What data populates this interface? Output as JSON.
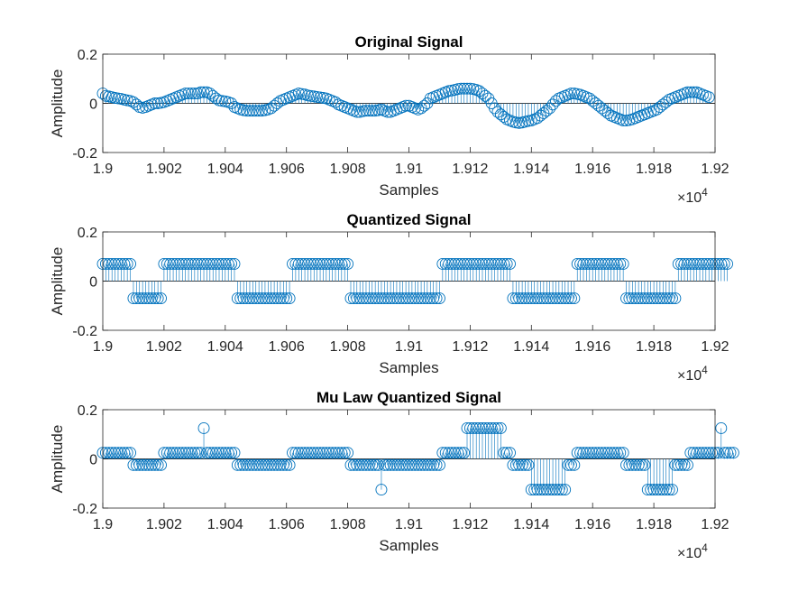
{
  "figure": {
    "background": "#ffffff",
    "stem_color": "#0072BD",
    "axis_color": "#262626"
  },
  "chart_data": [
    {
      "type": "stem",
      "title": "Original Signal",
      "xlabel": "Samples",
      "ylabel": "Amplitude",
      "xlim": [
        19000,
        19200
      ],
      "ylim": [
        -0.2,
        0.2
      ],
      "xticks": [
        19000,
        19020,
        19040,
        19060,
        19080,
        19100,
        19120,
        19140,
        19160,
        19180,
        19200
      ],
      "xtick_labels": [
        "1.9",
        "1.902",
        "1.904",
        "1.906",
        "1.908",
        "1.91",
        "1.912",
        "1.914",
        "1.916",
        "1.918",
        "1.92"
      ],
      "yticks": [
        -0.2,
        0,
        0.2
      ],
      "ytick_labels": [
        "-0.2",
        "0",
        "0.2"
      ],
      "x_exponent": {
        "base": "×10",
        "power": "4"
      },
      "grid": false,
      "x_start": 19000,
      "x_step": 1,
      "values": [
        0.04,
        0.03,
        0.028,
        0.025,
        0.022,
        0.02,
        0.018,
        0.015,
        0.012,
        0.01,
        0.005,
        -0.005,
        -0.015,
        -0.018,
        -0.015,
        -0.01,
        -0.005,
        0.0,
        0.0,
        0.002,
        0.005,
        0.01,
        0.015,
        0.02,
        0.025,
        0.03,
        0.035,
        0.04,
        0.04,
        0.04,
        0.04,
        0.04,
        0.045,
        0.045,
        0.045,
        0.04,
        0.03,
        0.02,
        0.012,
        0.01,
        0.008,
        0.005,
        0.0,
        -0.015,
        -0.02,
        -0.025,
        -0.028,
        -0.03,
        -0.03,
        -0.03,
        -0.03,
        -0.03,
        -0.03,
        -0.028,
        -0.025,
        -0.02,
        -0.01,
        0.0,
        0.01,
        0.015,
        0.02,
        0.025,
        0.03,
        0.035,
        0.04,
        0.038,
        0.036,
        0.032,
        0.03,
        0.028,
        0.026,
        0.024,
        0.022,
        0.02,
        0.015,
        0.01,
        0.005,
        -0.005,
        -0.01,
        -0.015,
        -0.02,
        -0.025,
        -0.03,
        -0.035,
        -0.035,
        -0.032,
        -0.03,
        -0.03,
        -0.03,
        -0.03,
        -0.028,
        -0.025,
        -0.03,
        -0.035,
        -0.035,
        -0.03,
        -0.025,
        -0.02,
        -0.015,
        -0.01,
        -0.01,
        -0.015,
        -0.02,
        -0.025,
        -0.02,
        -0.01,
        0.0,
        0.02,
        0.025,
        0.03,
        0.035,
        0.04,
        0.045,
        0.05,
        0.052,
        0.055,
        0.058,
        0.06,
        0.06,
        0.06,
        0.06,
        0.058,
        0.055,
        0.05,
        0.04,
        0.03,
        0.02,
        0.0,
        -0.02,
        -0.035,
        -0.045,
        -0.055,
        -0.065,
        -0.07,
        -0.075,
        -0.078,
        -0.08,
        -0.078,
        -0.075,
        -0.072,
        -0.07,
        -0.065,
        -0.06,
        -0.05,
        -0.04,
        -0.03,
        -0.02,
        -0.005,
        0.01,
        0.02,
        0.025,
        0.03,
        0.035,
        0.04,
        0.04,
        0.038,
        0.035,
        0.03,
        0.025,
        0.02,
        0.01,
        0.0,
        -0.01,
        -0.02,
        -0.03,
        -0.04,
        -0.05,
        -0.055,
        -0.06,
        -0.065,
        -0.07,
        -0.07,
        -0.068,
        -0.065,
        -0.06,
        -0.055,
        -0.05,
        -0.045,
        -0.04,
        -0.035,
        -0.03,
        -0.025,
        -0.015,
        -0.005,
        0.005,
        0.015,
        0.02,
        0.025,
        0.03,
        0.035,
        0.04,
        0.045,
        0.045,
        0.045,
        0.045,
        0.04,
        0.035,
        0.03,
        0.025
      ]
    },
    {
      "type": "stem",
      "title": "Quantized Signal",
      "xlabel": "Samples",
      "ylabel": "Amplitude",
      "xlim": [
        19000,
        19200
      ],
      "ylim": [
        -0.2,
        0.2
      ],
      "xticks": [
        19000,
        19020,
        19040,
        19060,
        19080,
        19100,
        19120,
        19140,
        19160,
        19180,
        19200
      ],
      "xtick_labels": [
        "1.9",
        "1.902",
        "1.904",
        "1.906",
        "1.908",
        "1.91",
        "1.912",
        "1.914",
        "1.916",
        "1.918",
        "1.92"
      ],
      "yticks": [
        -0.2,
        0,
        0.2
      ],
      "ytick_labels": [
        "-0.2",
        "0",
        "0.2"
      ],
      "x_exponent": {
        "base": "×10",
        "power": "4"
      },
      "grid": false,
      "x_start": 19000,
      "x_step": 1,
      "values": [
        0.07,
        0.07,
        0.07,
        0.07,
        0.07,
        0.07,
        0.07,
        0.07,
        0.07,
        0.07,
        -0.07,
        -0.07,
        -0.07,
        -0.07,
        -0.07,
        -0.07,
        -0.07,
        -0.07,
        -0.07,
        -0.07,
        0.07,
        0.07,
        0.07,
        0.07,
        0.07,
        0.07,
        0.07,
        0.07,
        0.07,
        0.07,
        0.07,
        0.07,
        0.07,
        0.07,
        0.07,
        0.07,
        0.07,
        0.07,
        0.07,
        0.07,
        0.07,
        0.07,
        0.07,
        0.07,
        -0.07,
        -0.07,
        -0.07,
        -0.07,
        -0.07,
        -0.07,
        -0.07,
        -0.07,
        -0.07,
        -0.07,
        -0.07,
        -0.07,
        -0.07,
        -0.07,
        -0.07,
        -0.07,
        -0.07,
        -0.07,
        0.07,
        0.07,
        0.07,
        0.07,
        0.07,
        0.07,
        0.07,
        0.07,
        0.07,
        0.07,
        0.07,
        0.07,
        0.07,
        0.07,
        0.07,
        0.07,
        0.07,
        0.07,
        0.07,
        -0.07,
        -0.07,
        -0.07,
        -0.07,
        -0.07,
        -0.07,
        -0.07,
        -0.07,
        -0.07,
        -0.07,
        -0.07,
        -0.07,
        -0.07,
        -0.07,
        -0.07,
        -0.07,
        -0.07,
        -0.07,
        -0.07,
        -0.07,
        -0.07,
        -0.07,
        -0.07,
        -0.07,
        -0.07,
        -0.07,
        -0.07,
        -0.07,
        -0.07,
        -0.07,
        0.07,
        0.07,
        0.07,
        0.07,
        0.07,
        0.07,
        0.07,
        0.07,
        0.07,
        0.07,
        0.07,
        0.07,
        0.07,
        0.07,
        0.07,
        0.07,
        0.07,
        0.07,
        0.07,
        0.07,
        0.07,
        0.07,
        0.07,
        -0.07,
        -0.07,
        -0.07,
        -0.07,
        -0.07,
        -0.07,
        -0.07,
        -0.07,
        -0.07,
        -0.07,
        -0.07,
        -0.07,
        -0.07,
        -0.07,
        -0.07,
        -0.07,
        -0.07,
        -0.07,
        -0.07,
        -0.07,
        -0.07,
        0.07,
        0.07,
        0.07,
        0.07,
        0.07,
        0.07,
        0.07,
        0.07,
        0.07,
        0.07,
        0.07,
        0.07,
        0.07,
        0.07,
        0.07,
        0.07,
        -0.07,
        -0.07,
        -0.07,
        -0.07,
        -0.07,
        -0.07,
        -0.07,
        -0.07,
        -0.07,
        -0.07,
        -0.07,
        -0.07,
        -0.07,
        -0.07,
        -0.07,
        -0.07,
        -0.07,
        0.07,
        0.07,
        0.07,
        0.07,
        0.07,
        0.07,
        0.07,
        0.07,
        0.07,
        0.07,
        0.07,
        0.07,
        0.07,
        0.07,
        0.07,
        0.07,
        0.07
      ]
    },
    {
      "type": "stem",
      "title": "Mu Law Quantized Signal",
      "xlabel": "Samples",
      "ylabel": "Amplitude",
      "xlim": [
        19000,
        19200
      ],
      "ylim": [
        -0.2,
        0.2
      ],
      "xticks": [
        19000,
        19020,
        19040,
        19060,
        19080,
        19100,
        19120,
        19140,
        19160,
        19180,
        19200
      ],
      "xtick_labels": [
        "1.9",
        "1.902",
        "1.904",
        "1.906",
        "1.908",
        "1.91",
        "1.912",
        "1.914",
        "1.916",
        "1.918",
        "1.92"
      ],
      "yticks": [
        -0.2,
        0,
        0.2
      ],
      "ytick_labels": [
        "-0.2",
        "0",
        "0.2"
      ],
      "x_exponent": {
        "base": "×10",
        "power": "4"
      },
      "grid": false,
      "x_start": 19000,
      "x_step": 1,
      "values": [
        0.025,
        0.025,
        0.025,
        0.025,
        0.025,
        0.025,
        0.025,
        0.025,
        0.025,
        0.025,
        -0.025,
        -0.025,
        -0.025,
        -0.025,
        -0.025,
        -0.025,
        -0.025,
        -0.025,
        -0.025,
        -0.025,
        0.025,
        0.025,
        0.025,
        0.025,
        0.025,
        0.025,
        0.025,
        0.025,
        0.025,
        0.025,
        0.025,
        0.025,
        0.025,
        0.125,
        0.025,
        0.025,
        0.025,
        0.025,
        0.025,
        0.025,
        0.025,
        0.025,
        0.025,
        0.025,
        -0.025,
        -0.025,
        -0.025,
        -0.025,
        -0.025,
        -0.025,
        -0.025,
        -0.025,
        -0.025,
        -0.025,
        -0.025,
        -0.025,
        -0.025,
        -0.025,
        -0.025,
        -0.025,
        -0.025,
        -0.025,
        0.025,
        0.025,
        0.025,
        0.025,
        0.025,
        0.025,
        0.025,
        0.025,
        0.025,
        0.025,
        0.025,
        0.025,
        0.025,
        0.025,
        0.025,
        0.025,
        0.025,
        0.025,
        0.025,
        -0.025,
        -0.025,
        -0.025,
        -0.025,
        -0.025,
        -0.025,
        -0.025,
        -0.025,
        -0.025,
        -0.025,
        -0.125,
        -0.025,
        -0.025,
        -0.025,
        -0.025,
        -0.025,
        -0.025,
        -0.025,
        -0.025,
        -0.025,
        -0.025,
        -0.025,
        -0.025,
        -0.025,
        -0.025,
        -0.025,
        -0.025,
        -0.025,
        -0.025,
        -0.025,
        0.025,
        0.025,
        0.025,
        0.025,
        0.025,
        0.025,
        0.025,
        0.025,
        0.125,
        0.125,
        0.125,
        0.125,
        0.125,
        0.125,
        0.125,
        0.125,
        0.125,
        0.125,
        0.125,
        0.125,
        0.025,
        0.025,
        0.025,
        -0.025,
        -0.025,
        -0.025,
        -0.025,
        -0.025,
        -0.025,
        -0.125,
        -0.125,
        -0.125,
        -0.125,
        -0.125,
        -0.125,
        -0.125,
        -0.125,
        -0.125,
        -0.125,
        -0.125,
        -0.125,
        -0.025,
        -0.025,
        -0.025,
        0.025,
        0.025,
        0.025,
        0.025,
        0.025,
        0.025,
        0.025,
        0.025,
        0.025,
        0.025,
        0.025,
        0.025,
        0.025,
        0.025,
        0.025,
        0.025,
        -0.025,
        -0.025,
        -0.025,
        -0.025,
        -0.025,
        -0.025,
        -0.025,
        -0.125,
        -0.125,
        -0.125,
        -0.125,
        -0.125,
        -0.125,
        -0.125,
        -0.125,
        -0.125,
        -0.025,
        -0.025,
        -0.025,
        -0.025,
        -0.025,
        0.025,
        0.025,
        0.025,
        0.025,
        0.025,
        0.025,
        0.025,
        0.025,
        0.025,
        0.025,
        0.125,
        0.025,
        0.025,
        0.025,
        0.025
      ]
    }
  ]
}
